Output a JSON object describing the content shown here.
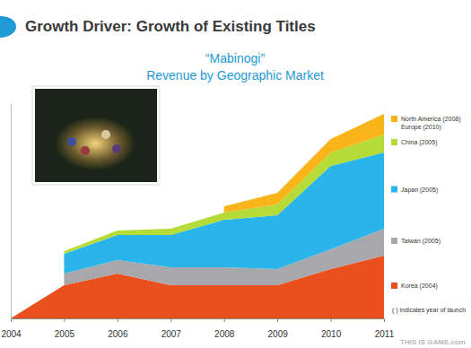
{
  "header": {
    "title": "Growth Driver: Growth of Existing Titles"
  },
  "chart_data": {
    "type": "area",
    "stacked": true,
    "title": "“Mabinogi”",
    "subtitle": "Revenue by Geographic Market",
    "x": [
      2004,
      2005,
      2006,
      2007,
      2008,
      2009,
      2010,
      2011
    ],
    "xlim": [
      2004,
      2011
    ],
    "xticks": [
      2004,
      2005,
      2006,
      2007,
      2008,
      2009,
      2010,
      2011
    ],
    "ylim": [
      0,
      240
    ],
    "yticks": [],
    "tick_labels": "x",
    "grid": false,
    "legend": "right",
    "series": [
      {
        "name": "Korea (2004)",
        "color": "#e9501d",
        "values": [
          0,
          37,
          50,
          37,
          37,
          37,
          55,
          70
        ]
      },
      {
        "name": "Taiwan (2005)",
        "color": "#a8a8ac",
        "values": [
          null,
          13,
          15,
          20,
          20,
          18,
          22,
          30
        ]
      },
      {
        "name": "Japan (2005)",
        "color": "#29b5e9",
        "values": [
          null,
          22,
          28,
          36,
          53,
          60,
          93,
          85
        ]
      },
      {
        "name": "China (2005)",
        "color": "#b4db38",
        "values": [
          null,
          3,
          5,
          7,
          8,
          12,
          15,
          20
        ]
      },
      {
        "name": "North America (2008)\nEurope (2010)",
        "color": "#f8b418",
        "values": [
          null,
          null,
          null,
          null,
          7,
          13,
          15,
          23
        ]
      }
    ],
    "annotations": [
      "( ) indicates year of launch",
      "THIS IS GAME.com"
    ]
  }
}
